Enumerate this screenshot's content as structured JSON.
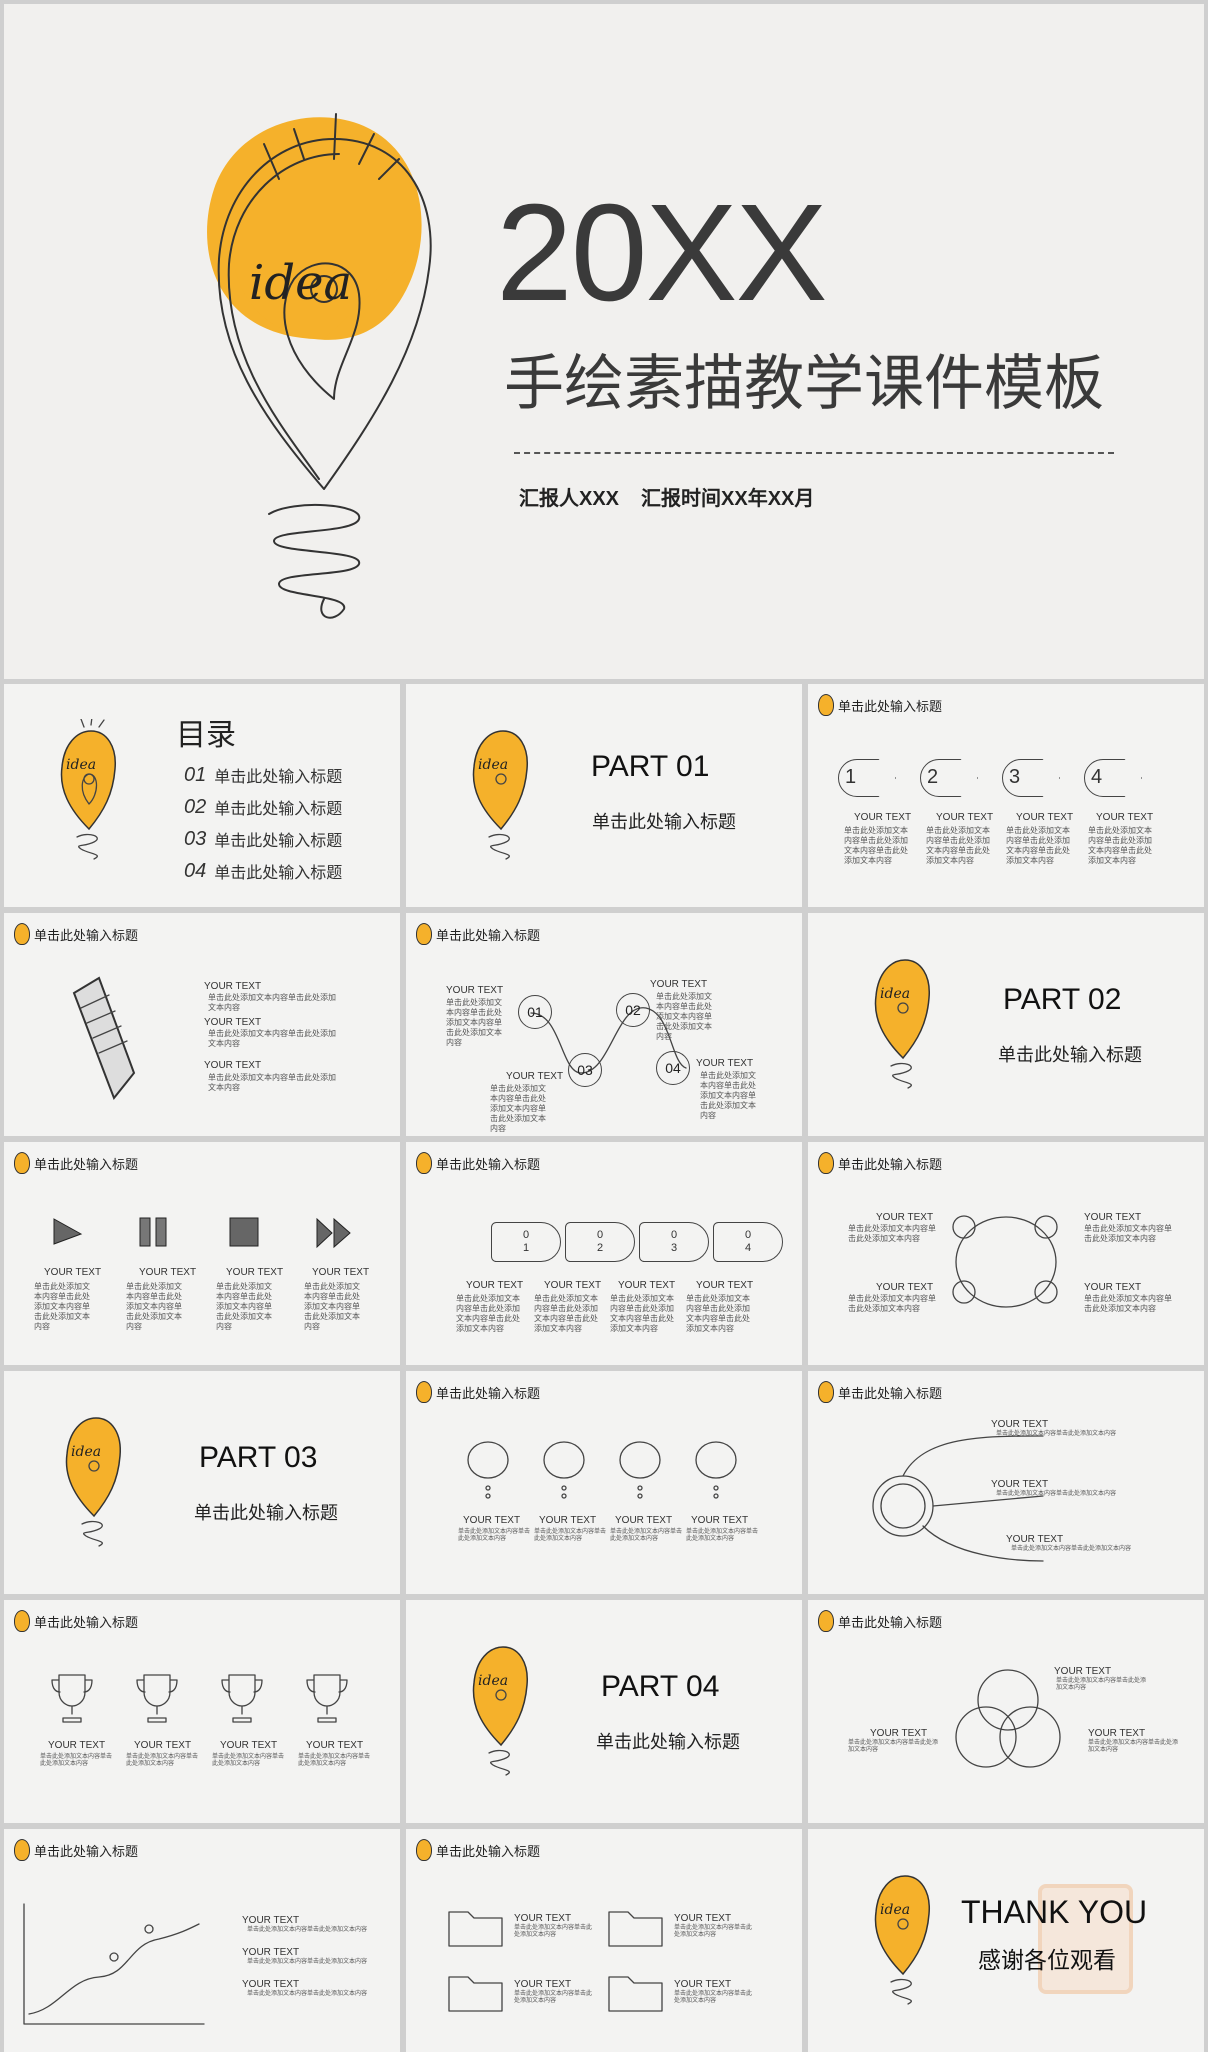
{
  "hero": {
    "idea_word": "idea",
    "year": "20XX",
    "title": "手绘素描教学课件模板",
    "presenter": "汇报人XXX",
    "time": "汇报时间XX年XX月"
  },
  "toc": {
    "title": "目录",
    "items": [
      {
        "num": "01",
        "label": "单击此处输入标题"
      },
      {
        "num": "02",
        "label": "单击此处输入标题"
      },
      {
        "num": "03",
        "label": "单击此处输入标题"
      },
      {
        "num": "04",
        "label": "单击此处输入标题"
      }
    ]
  },
  "slide_header": "单击此处输入标题",
  "subtitle": "单击此处输入标题",
  "your_text": "YOUR TEXT",
  "body_short": "单击此处添加文本内容单击此处添加文本内容单击此处添加文本内容",
  "body_small": "单击此处添加文本内容单击此处添加文本内容",
  "parts": [
    "PART 01",
    "PART 02",
    "PART 03",
    "PART 04"
  ],
  "steps4": [
    "1",
    "2",
    "3",
    "4"
  ],
  "bubbles": [
    "01",
    "02",
    "03",
    "04"
  ],
  "tabs": [
    [
      "0",
      "1"
    ],
    [
      "0",
      "2"
    ],
    [
      "0",
      "3"
    ],
    [
      "0",
      "4"
    ]
  ],
  "thanks": {
    "en": "THANK YOU",
    "cn": "感谢各位观看"
  },
  "colors": {
    "accent": "#f5b12b",
    "ink": "#333333",
    "bg": "#f3f3f2"
  }
}
